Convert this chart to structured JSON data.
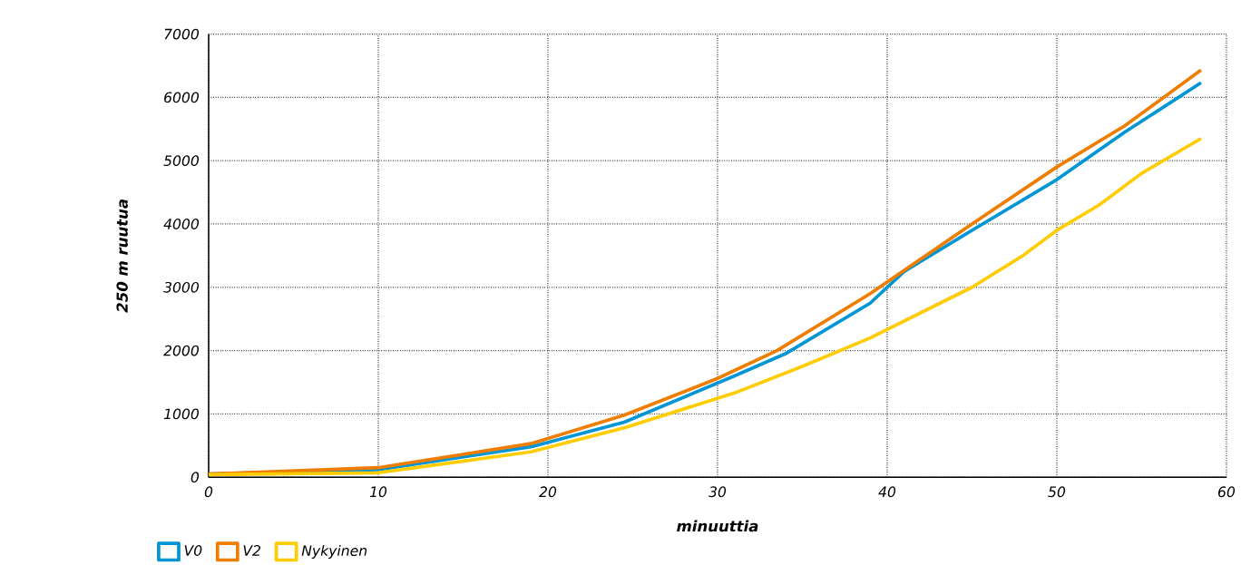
{
  "chart_data": {
    "type": "line",
    "xlabel": "minuuttia",
    "ylabel": "250 m ruutua",
    "xlim": [
      0,
      60
    ],
    "ylim": [
      0,
      7000
    ],
    "xticks": [
      0,
      10,
      20,
      30,
      40,
      50,
      60
    ],
    "yticks": [
      0,
      1000,
      2000,
      3000,
      4000,
      5000,
      6000,
      7000
    ],
    "grid": true,
    "legend": "bottom left",
    "marker": "none",
    "line_style": "solid",
    "series": [
      {
        "name": "V0",
        "color": "#0096d6",
        "x": [
          0,
          10,
          19,
          24.5,
          31,
          34,
          39,
          41,
          45,
          50,
          54,
          58.5
        ],
        "values": [
          50,
          120,
          480,
          870,
          1600,
          1950,
          2750,
          3250,
          3900,
          4700,
          5450,
          6230
        ]
      },
      {
        "name": "V2",
        "color": "#ee7d00",
        "x": [
          0,
          10,
          19,
          24.5,
          30,
          33.5,
          39,
          45,
          50,
          54,
          58.5
        ],
        "values": [
          50,
          150,
          530,
          980,
          1560,
          2000,
          2900,
          4000,
          4900,
          5550,
          6430
        ]
      },
      {
        "name": "Nykyinen",
        "color": "#ffcc00",
        "x": [
          0,
          10,
          19,
          24.5,
          31,
          35,
          39,
          45,
          48,
          50,
          52.5,
          55,
          58.5
        ],
        "values": [
          40,
          70,
          400,
          780,
          1330,
          1750,
          2200,
          3000,
          3500,
          3900,
          4300,
          4800,
          5350
        ]
      }
    ]
  }
}
